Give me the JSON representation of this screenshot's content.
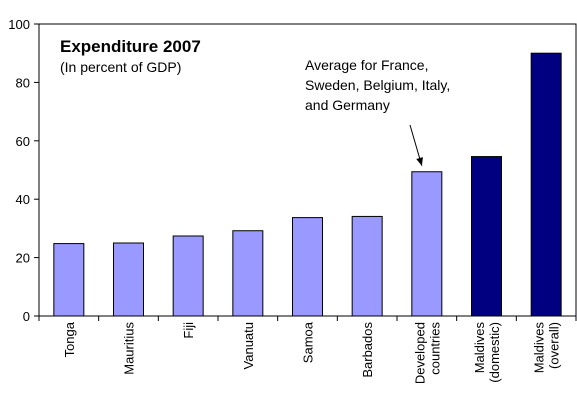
{
  "chart_data": {
    "type": "bar",
    "title": "Expenditure 2007",
    "subtitle": "(In percent of GDP)",
    "xlabel": "",
    "ylabel": "",
    "ylim": [
      0,
      100
    ],
    "yticks": [
      0,
      20,
      40,
      60,
      80,
      100
    ],
    "grid": false,
    "legend": "none",
    "categories": [
      [
        "Tonga"
      ],
      [
        "Mauritius"
      ],
      [
        "Fiji"
      ],
      [
        "Vanuatu"
      ],
      [
        "Samoa"
      ],
      [
        "Barbados"
      ],
      [
        "Developed",
        "countries"
      ],
      [
        "Maldives",
        "(domestic)"
      ],
      [
        "Maldives",
        "(overall)"
      ]
    ],
    "values": [
      24.8,
      25.0,
      27.4,
      29.2,
      33.7,
      34.1,
      49.4,
      54.6,
      90.0
    ],
    "bar_colors": [
      "#9999ff",
      "#9999ff",
      "#9999ff",
      "#9999ff",
      "#9999ff",
      "#9999ff",
      "#9999ff",
      "#000080",
      "#000080"
    ],
    "annotation": {
      "lines": [
        "Average for France,",
        "Sweden, Belgium, Italy,",
        "and Germany"
      ],
      "points_to": "Developed countries"
    }
  }
}
